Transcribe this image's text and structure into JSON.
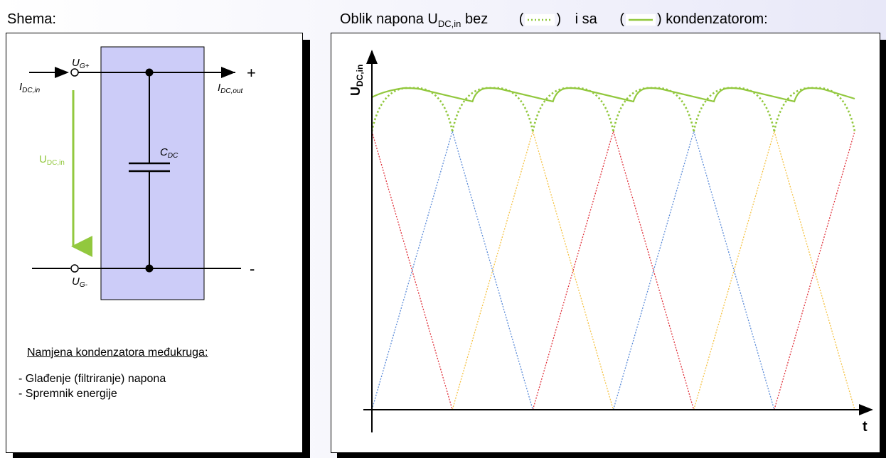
{
  "left": {
    "heading": "Shema:",
    "labels": {
      "ug_plus": "U",
      "ug_plus_sub": "G+",
      "ug_minus": "U",
      "ug_minus_sub": "G-",
      "idc_in": "I",
      "idc_in_sub": "DC,in",
      "idc_out": "I",
      "idc_out_sub": "DC,out",
      "plus": "+",
      "minus": "-",
      "cdc": "C",
      "cdc_sub": "DC",
      "udc_in": "U",
      "udc_in_sub": "DC,in"
    },
    "purpose_title": "Namjena kondenzatora međukruga",
    "purpose_colon": ":",
    "purpose_items": [
      "- Glađenje (filtriranje) napona",
      "- Spremnik energije"
    ]
  },
  "right": {
    "heading_prefix": "Oblik napona  U",
    "heading_sub": "DC,in",
    "heading_mid1": " bez",
    "heading_open1": "(",
    "heading_close1": ")",
    "heading_mid2": "i  sa",
    "heading_open2": "(",
    "heading_close2": ") kondenzatorom:",
    "y_axis_label": "U",
    "y_axis_sub": "DC,in",
    "x_axis_label": "t"
  },
  "colors": {
    "accent_green": "#92c83e",
    "phase_red": "#e0303a",
    "phase_blue": "#5b8bd8",
    "phase_yellow": "#f5c243",
    "capacitor_box": "#ccccf8"
  }
}
